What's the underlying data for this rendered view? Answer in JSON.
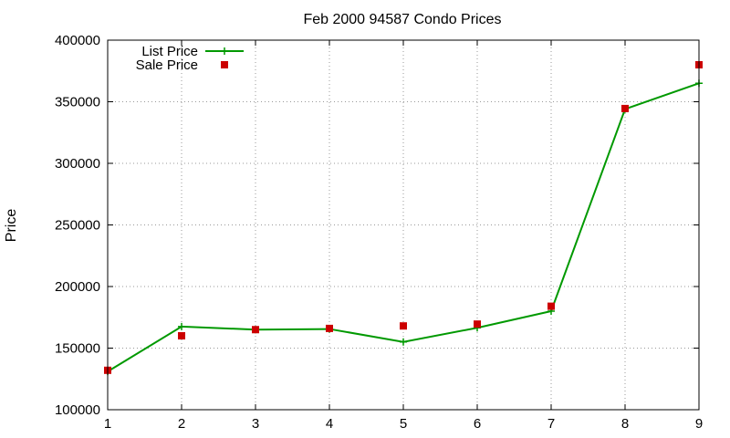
{
  "chart_data": {
    "type": "line",
    "title": "Feb 2000 94587 Condo Prices",
    "xlabel": "",
    "ylabel": "Price",
    "x": [
      1,
      2,
      3,
      4,
      5,
      6,
      7,
      8,
      9
    ],
    "xlim": [
      1,
      9
    ],
    "ylim": [
      100000,
      400000
    ],
    "xticks": [
      "1",
      "2",
      "3",
      "4",
      "5",
      "6",
      "7",
      "8",
      "9"
    ],
    "yticks": [
      "100000",
      "150000",
      "200000",
      "250000",
      "300000",
      "350000",
      "400000"
    ],
    "grid": true,
    "legend_position": "top-left",
    "series": [
      {
        "name": "List Price",
        "style": "line with plus markers",
        "color": "#009900",
        "values": [
          131000,
          167500,
          165000,
          165500,
          155000,
          166500,
          180000,
          344000,
          365000
        ]
      },
      {
        "name": "Sale Price",
        "style": "square markers",
        "color": "#cc0000",
        "values": [
          132000,
          160000,
          165000,
          166000,
          168000,
          169500,
          184000,
          344500,
          380000
        ]
      }
    ]
  }
}
